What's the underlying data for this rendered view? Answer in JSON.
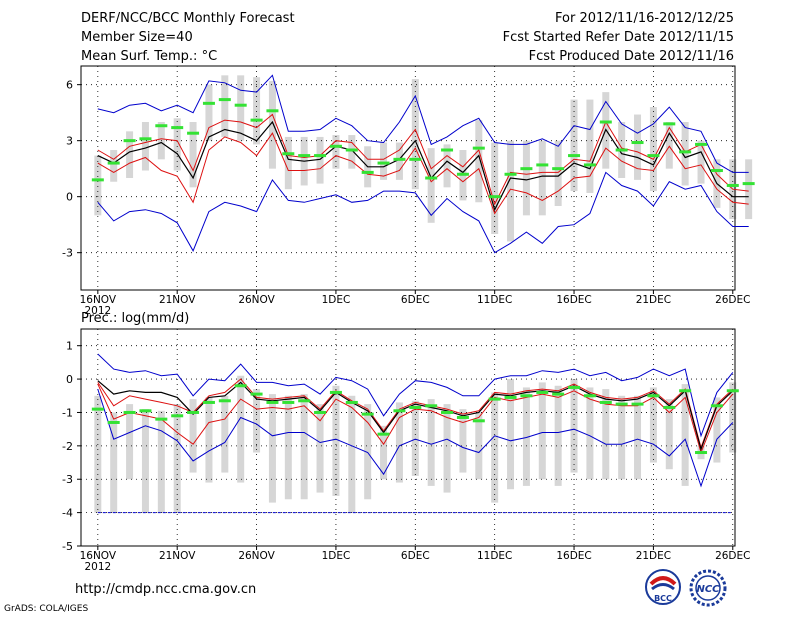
{
  "header": {
    "title": "DERF/NCC/BCC Monthly Forecast",
    "member_size": "Member Size=40",
    "panel1_label": "Mean Surf. Temp.: °C",
    "period": "For 2012/11/16-2012/12/25",
    "started": "Fcst Started Refer Date 2012/11/15",
    "produced": "Fcst Produced Date 2012/11/16"
  },
  "footer": {
    "url": "http://cmdp.ncc.cma.gov.cn",
    "grads": "GrADS: COLA/IGES",
    "logo_bcc": "BCC",
    "logo_ncc": "NCC"
  },
  "colors": {
    "obs": "#34e234",
    "mean": "#000000",
    "spread": "#dd1111",
    "range": "#0000cc",
    "bar": "#d6d6d6",
    "ref": "#0000cc"
  },
  "chart_data": [
    {
      "type": "line",
      "title": "Mean Surf. Temp.: °C",
      "x_ticks": [
        "16NOV",
        "21NOV",
        "26NOV",
        "1DEC",
        "6DEC",
        "11DEC",
        "16DEC",
        "21DEC",
        "26DEC"
      ],
      "x_year": "2012",
      "ylim": [
        -5,
        7
      ],
      "y_ticks": [
        -3,
        0,
        3,
        6
      ],
      "series": [
        {
          "name": "obs",
          "values": [
            0.9,
            1.8,
            3.0,
            3.1,
            3.8,
            3.7,
            3.4,
            5.0,
            5.2,
            4.9,
            4.1,
            4.6,
            2.3,
            2.2,
            2.2,
            2.7,
            2.5,
            1.3,
            1.8,
            2.0,
            2.0,
            1.0,
            2.5,
            1.2,
            2.6,
            0.0,
            1.2,
            1.5,
            1.7,
            1.5,
            2.2,
            1.7,
            4.0,
            2.5,
            2.9,
            2.2,
            3.9,
            2.4,
            2.8,
            1.4,
            0.6,
            0.7
          ]
        },
        {
          "name": "max",
          "values": [
            4.7,
            4.5,
            4.9,
            5.0,
            4.6,
            4.9,
            4.5,
            6.2,
            6.1,
            5.7,
            5.6,
            6.5,
            3.5,
            3.5,
            3.6,
            4.2,
            3.8,
            3.0,
            2.9,
            4.0,
            5.4,
            2.8,
            3.2,
            3.8,
            4.2,
            2.9,
            2.8,
            2.8,
            3.1,
            2.7,
            3.8,
            3.6,
            5.1,
            3.9,
            3.4,
            3.9,
            4.8,
            3.7,
            3.5,
            1.8,
            1.3,
            1.3
          ]
        },
        {
          "name": "upper",
          "values": [
            2.5,
            2.0,
            2.7,
            2.9,
            3.1,
            3.0,
            1.4,
            3.7,
            4.1,
            4.0,
            3.7,
            4.4,
            2.2,
            2.1,
            2.2,
            3.0,
            2.9,
            2.0,
            2.0,
            2.5,
            3.6,
            1.5,
            2.2,
            1.6,
            2.5,
            -0.4,
            1.3,
            1.2,
            1.3,
            1.3,
            2.0,
            1.9,
            4.0,
            2.6,
            2.4,
            2.0,
            3.7,
            2.4,
            2.8,
            1.2,
            0.4,
            0.3
          ]
        },
        {
          "name": "mean",
          "values": [
            2.2,
            1.8,
            2.4,
            2.6,
            2.9,
            2.3,
            1.0,
            3.2,
            3.6,
            3.4,
            3.0,
            4.0,
            2.0,
            1.9,
            2.0,
            2.7,
            2.5,
            1.6,
            1.6,
            2.0,
            3.0,
            1.0,
            1.9,
            1.3,
            2.2,
            -0.7,
            1.0,
            0.9,
            1.1,
            1.1,
            1.8,
            1.5,
            3.6,
            2.3,
            2.1,
            1.7,
            3.4,
            2.1,
            2.4,
            0.7,
            0.0,
            0.0
          ]
        },
        {
          "name": "lower",
          "values": [
            1.8,
            1.3,
            1.8,
            2.1,
            1.4,
            1.1,
            -0.3,
            2.5,
            3.2,
            2.9,
            2.2,
            3.4,
            1.4,
            1.4,
            1.5,
            2.2,
            1.9,
            1.2,
            1.1,
            1.4,
            2.6,
            0.8,
            1.5,
            0.8,
            1.5,
            -0.9,
            0.4,
            0.2,
            -0.2,
            0.3,
            1.0,
            1.1,
            2.6,
            1.9,
            1.5,
            1.4,
            2.7,
            1.5,
            1.7,
            0.4,
            -0.3,
            -0.4
          ]
        },
        {
          "name": "min",
          "values": [
            -0.3,
            -1.3,
            -0.8,
            -0.7,
            -0.9,
            -1.4,
            -2.9,
            -0.8,
            -0.3,
            -0.5,
            -0.8,
            0.9,
            -0.2,
            -0.3,
            -0.1,
            0.1,
            -0.3,
            -0.2,
            0.3,
            0.3,
            0.2,
            -1.0,
            -0.1,
            -0.8,
            -1.3,
            -3.0,
            -2.5,
            -1.9,
            -2.5,
            -1.6,
            -1.5,
            -0.9,
            1.3,
            0.6,
            0.3,
            -0.5,
            0.8,
            0.4,
            0.6,
            -0.8,
            -1.6,
            -1.6
          ]
        },
        {
          "name": "bar_top",
          "values": [
            2.2,
            2.5,
            3.5,
            4.0,
            4.0,
            4.2,
            4.0,
            6.0,
            6.5,
            6.5,
            6.4,
            6.2,
            3.2,
            3.2,
            3.2,
            3.3,
            3.3,
            2.7,
            2.9,
            2.9,
            6.3,
            2.6,
            2.8,
            2.5,
            4.1,
            2.9,
            3.0,
            3.0,
            3.0,
            3.0,
            5.2,
            5.2,
            5.6,
            4.0,
            4.4,
            4.8,
            4.0,
            4.0,
            3.0,
            2.0,
            2.0,
            2.0
          ]
        },
        {
          "name": "bar_bottom",
          "values": [
            -1.0,
            0.8,
            1.0,
            1.4,
            2.0,
            1.4,
            0.5,
            3.0,
            3.2,
            3.0,
            2.8,
            1.5,
            0.4,
            0.6,
            0.7,
            1.5,
            1.5,
            0.5,
            0.9,
            0.9,
            0.4,
            -1.4,
            0.5,
            -0.2,
            -0.3,
            -2.0,
            -2.4,
            -1.0,
            -1.0,
            -0.5,
            0.3,
            0.2,
            1.5,
            1.0,
            0.9,
            0.3,
            1.5,
            0.6,
            0.7,
            -0.6,
            -1.2,
            -1.2
          ]
        }
      ]
    },
    {
      "type": "line",
      "title": "Prec.: log(mm/d)",
      "x_ticks": [
        "16NOV",
        "21NOV",
        "26NOV",
        "1DEC",
        "6DEC",
        "11DEC",
        "16DEC",
        "21DEC",
        "26DEC"
      ],
      "x_year": "2012",
      "ylim": [
        -5,
        1.5
      ],
      "y_ticks": [
        -5,
        -4,
        -3,
        -2,
        -1,
        0,
        1
      ],
      "reference_line": -4,
      "series": [
        {
          "name": "obs",
          "values": [
            -0.9,
            -1.3,
            -1.0,
            -0.95,
            -1.2,
            -1.1,
            -1.0,
            -0.7,
            -0.65,
            -0.2,
            -0.45,
            -0.7,
            -0.7,
            -0.65,
            -1.0,
            -0.4,
            -0.7,
            -1.05,
            -1.65,
            -0.95,
            -0.85,
            -0.8,
            -1.0,
            -1.15,
            -1.25,
            -0.6,
            -0.55,
            -0.5,
            -0.4,
            -0.45,
            -0.25,
            -0.5,
            -0.7,
            -0.75,
            -0.75,
            -0.5,
            -0.85,
            -0.35,
            -2.2,
            -0.8,
            -0.35
          ]
        },
        {
          "name": "max",
          "values": [
            0.75,
            0.3,
            0.2,
            0.25,
            0.1,
            0.15,
            -0.5,
            0.0,
            -0.05,
            0.45,
            -0.1,
            -0.1,
            -0.2,
            -0.15,
            -0.45,
            0.05,
            -0.05,
            -0.3,
            -1.1,
            -0.45,
            -0.05,
            -0.1,
            -0.25,
            -0.5,
            -0.5,
            0.0,
            0.1,
            0.1,
            0.25,
            0.2,
            0.3,
            0.1,
            0.2,
            -0.05,
            0.05,
            0.3,
            0.1,
            0.3,
            -1.7,
            -0.4,
            0.2
          ]
        },
        {
          "name": "upper",
          "values": [
            -0.1,
            -0.8,
            -0.5,
            -0.6,
            -0.7,
            -0.8,
            -1.0,
            -0.5,
            -0.4,
            0.0,
            -0.55,
            -0.6,
            -0.55,
            -0.5,
            -0.9,
            -0.35,
            -0.65,
            -0.9,
            -1.55,
            -0.9,
            -0.7,
            -0.8,
            -0.9,
            -1.05,
            -0.95,
            -0.4,
            -0.45,
            -0.35,
            -0.3,
            -0.35,
            -0.15,
            -0.4,
            -0.55,
            -0.6,
            -0.55,
            -0.35,
            -0.75,
            -0.3,
            -2.05,
            -0.75,
            -0.3
          ]
        },
        {
          "name": "mean",
          "values": [
            -0.05,
            -0.45,
            -0.35,
            -0.4,
            -0.4,
            -0.55,
            -1.05,
            -0.55,
            -0.5,
            -0.1,
            -0.6,
            -0.65,
            -0.6,
            -0.55,
            -0.95,
            -0.4,
            -0.7,
            -0.95,
            -1.6,
            -0.95,
            -0.75,
            -0.85,
            -0.95,
            -1.1,
            -1.0,
            -0.45,
            -0.5,
            -0.4,
            -0.35,
            -0.4,
            -0.2,
            -0.45,
            -0.6,
            -0.65,
            -0.6,
            -0.4,
            -0.8,
            -0.35,
            -2.1,
            -0.8,
            -0.35
          ]
        },
        {
          "name": "lower",
          "values": [
            -0.15,
            -1.2,
            -1.0,
            -1.1,
            -1.2,
            -1.6,
            -1.95,
            -1.3,
            -1.2,
            -0.6,
            -0.9,
            -0.85,
            -0.9,
            -0.8,
            -1.25,
            -0.6,
            -0.85,
            -1.3,
            -1.95,
            -1.15,
            -0.9,
            -0.95,
            -1.15,
            -1.3,
            -1.15,
            -0.55,
            -0.65,
            -0.55,
            -0.45,
            -0.55,
            -0.35,
            -0.6,
            -0.75,
            -0.8,
            -0.8,
            -0.55,
            -1.0,
            -0.55,
            -2.2,
            -1.0,
            -0.45
          ]
        },
        {
          "name": "min",
          "values": [
            -0.3,
            -1.8,
            -1.6,
            -1.4,
            -1.55,
            -1.85,
            -2.45,
            -2.15,
            -1.9,
            -1.15,
            -1.35,
            -1.7,
            -1.6,
            -1.6,
            -1.9,
            -1.8,
            -2.0,
            -2.2,
            -2.85,
            -2.0,
            -1.8,
            -1.95,
            -1.8,
            -2.05,
            -2.2,
            -1.7,
            -1.85,
            -1.75,
            -1.6,
            -1.6,
            -1.5,
            -1.7,
            -1.95,
            -1.95,
            -1.8,
            -1.95,
            -2.3,
            -1.8,
            -3.2,
            -1.8,
            -1.3
          ]
        },
        {
          "name": "bar_top",
          "values": [
            -0.5,
            -1.0,
            -0.75,
            -0.9,
            -0.95,
            -0.75,
            -0.6,
            -0.55,
            -0.5,
            0.1,
            -0.3,
            -0.45,
            -0.5,
            -0.45,
            -0.75,
            -0.2,
            -0.5,
            -0.75,
            -1.4,
            -0.7,
            -0.65,
            -0.6,
            -0.75,
            -0.9,
            -1.0,
            -0.4,
            0.0,
            -0.25,
            -0.1,
            -0.2,
            0.0,
            -0.25,
            -0.3,
            -0.5,
            -0.5,
            -0.25,
            -0.6,
            -0.15,
            -2.0,
            -0.55,
            -0.1
          ]
        },
        {
          "name": "bar_bottom",
          "values": [
            -4.0,
            -4.0,
            -3.0,
            -4.0,
            -4.0,
            -4.0,
            -2.8,
            -3.1,
            -2.8,
            -3.1,
            -2.2,
            -3.7,
            -3.6,
            -3.6,
            -3.4,
            -3.5,
            -4.0,
            -3.6,
            -3.0,
            -3.1,
            -2.9,
            -3.2,
            -3.4,
            -2.8,
            -3.0,
            -3.7,
            -3.3,
            -3.2,
            -3.0,
            -3.2,
            -2.8,
            -3.0,
            -3.0,
            -3.0,
            -3.0,
            -2.5,
            -2.7,
            -3.2,
            -2.4,
            -2.5,
            -2.2
          ]
        }
      ]
    }
  ]
}
